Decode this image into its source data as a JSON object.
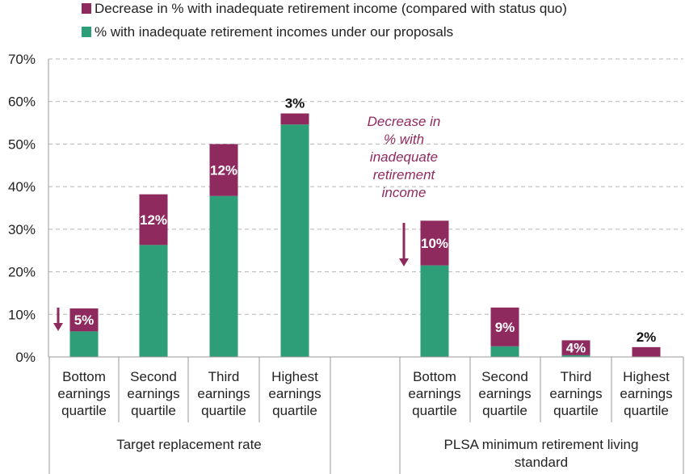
{
  "chart_data": {
    "type": "bar",
    "stacked": true,
    "legend": {
      "placement": "top",
      "entries": [
        {
          "name": "Decrease in % with inadequate retirement income (compared with status quo)",
          "color": "#8e2a5e"
        },
        {
          "name": "% with inadequate retirement incomes under our proposals",
          "color": "#2e9e78"
        }
      ]
    },
    "ylim": [
      0,
      70
    ],
    "yticks": [
      "0%",
      "10%",
      "20%",
      "30%",
      "40%",
      "50%",
      "60%",
      "70%"
    ],
    "grid": true,
    "groups": [
      {
        "label": "Target replacement rate",
        "categories": [
          0,
          1,
          2,
          3
        ]
      },
      {
        "label": "PLSA minimum retirement living standard",
        "categories": [
          4,
          5,
          6,
          7
        ]
      }
    ],
    "categories": [
      [
        "Bottom",
        "earnings",
        "quartile"
      ],
      [
        "Second",
        "earnings",
        "quartile"
      ],
      [
        "Third",
        "earnings",
        "quartile"
      ],
      [
        "Highest",
        "earnings",
        "quartile"
      ],
      [
        "Bottom",
        "earnings",
        "quartile"
      ],
      [
        "Second",
        "earnings",
        "quartile"
      ],
      [
        "Third",
        "earnings",
        "quartile"
      ],
      [
        "Highest",
        "earnings",
        "quartile"
      ]
    ],
    "series": [
      {
        "name": "% with inadequate retirement incomes under our proposals",
        "color": "#2e9e78",
        "values": [
          6.0,
          26.3,
          37.8,
          54.6,
          21.5,
          2.5,
          0.4,
          0.0
        ]
      },
      {
        "name": "Decrease in % with inadequate retirement income (compared with status quo)",
        "color": "#8e2a5e",
        "values": [
          5.4,
          11.9,
          12.2,
          2.6,
          10.5,
          9.1,
          3.5,
          2.3
        ]
      }
    ],
    "data_labels": [
      "5%",
      "12%",
      "12%",
      "3%",
      "10%",
      "9%",
      "4%",
      "2%"
    ],
    "annotation": [
      "Decrease in",
      "% with",
      "inadequate",
      "retirement",
      "income"
    ]
  }
}
